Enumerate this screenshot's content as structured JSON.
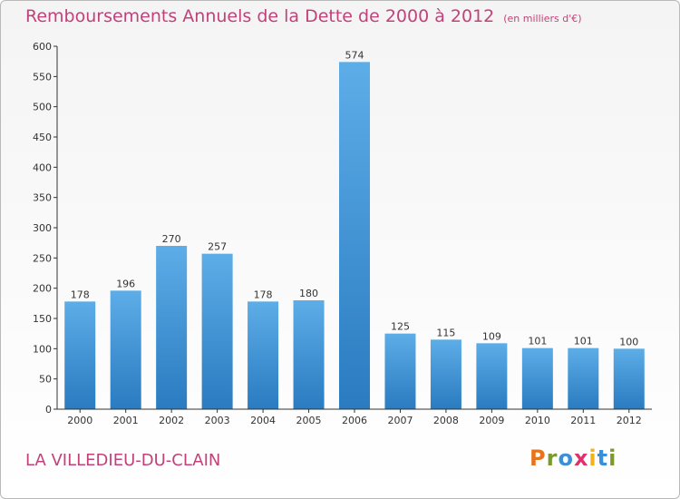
{
  "chart_data": {
    "type": "bar",
    "title": "Remboursements Annuels de la Dette de 2000 à 2012",
    "unit_note": "(en milliers d'€)",
    "categories": [
      "2000",
      "2001",
      "2002",
      "2003",
      "2004",
      "2005",
      "2006",
      "2007",
      "2008",
      "2009",
      "2010",
      "2011",
      "2012"
    ],
    "values": [
      178,
      196,
      270,
      257,
      178,
      180,
      574,
      125,
      115,
      109,
      101,
      101,
      100
    ],
    "ylim": [
      0,
      600
    ],
    "yticks": [
      0,
      50,
      100,
      150,
      200,
      250,
      300,
      350,
      400,
      450,
      500,
      550,
      600
    ],
    "xlabel": "",
    "ylabel": "",
    "grid": false,
    "bar_color_top": "#5dade8",
    "bar_color_bottom": "#2a7bc0"
  },
  "footer": {
    "city": "LA VILLEDIEU-DU-CLAIN",
    "brand": "Proxiti"
  },
  "colors": {
    "title": "#c0427a",
    "axis": "#333333",
    "brand_letters": [
      "#e8731a",
      "#7a9a2e",
      "#3b8ed8",
      "#e2306c",
      "#f2b21a",
      "#3b8ed8",
      "#7a9a2e"
    ]
  }
}
